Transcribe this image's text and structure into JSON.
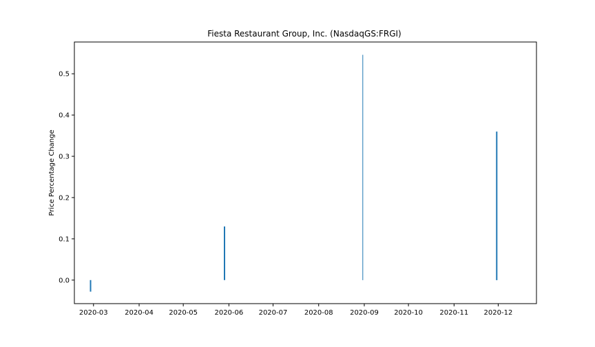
{
  "chart_data": {
    "type": "bar",
    "title": "Fiesta Restaurant Group, Inc. (NasdaqGS:FRGI)",
    "xlabel": "",
    "ylabel": "Price Percentage Change",
    "x_axis": "date",
    "xlim": [
      "2020-02-17",
      "2020-12-27"
    ],
    "ylim": [
      -0.057,
      0.577
    ],
    "x_ticks": [
      "2020-03",
      "2020-04",
      "2020-05",
      "2020-06",
      "2020-07",
      "2020-08",
      "2020-09",
      "2020-10",
      "2020-11",
      "2020-12"
    ],
    "y_ticks": [
      0.0,
      0.1,
      0.2,
      0.3,
      0.4,
      0.5
    ],
    "y_tick_labels": [
      "0.0",
      "0.1",
      "0.2",
      "0.3",
      "0.4",
      "0.5"
    ],
    "grid": false,
    "legend": "none",
    "bar_color": "#1f77b4",
    "series": [
      {
        "x": [
          "2020-02-28",
          "2020-05-29",
          "2020-08-31",
          "2020-11-30"
        ],
        "values": [
          -0.028,
          0.13,
          0.546,
          0.36
        ]
      }
    ]
  }
}
